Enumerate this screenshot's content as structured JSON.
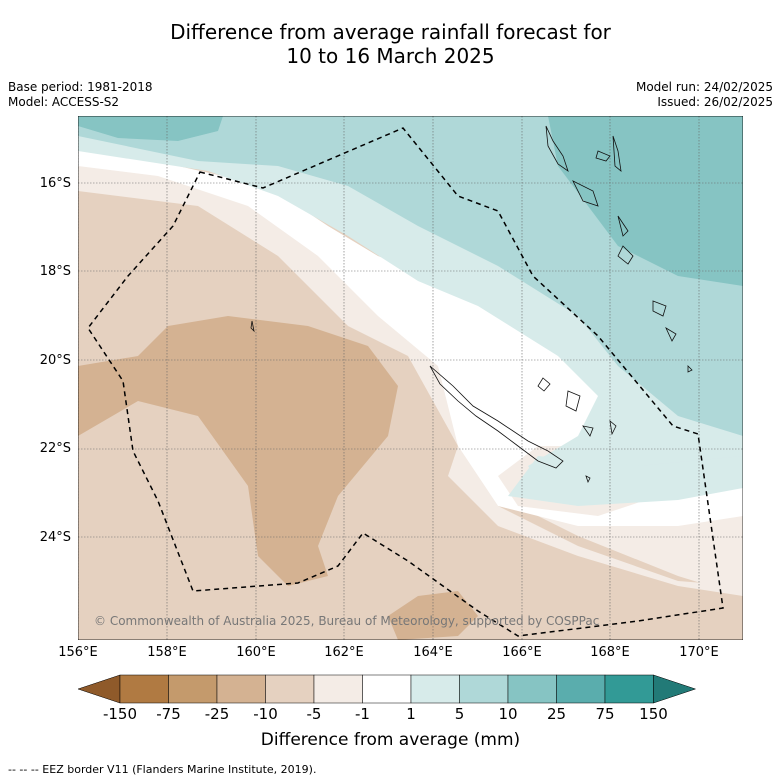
{
  "title_line1": "Difference from average rainfall forecast for",
  "title_line2": "10 to 16 March 2025",
  "base_period": "Base period: 1981-2018",
  "model": "Model: ACCESS-S2",
  "model_run": "Model run: 24/02/2025",
  "issued": "Issued: 26/02/2025",
  "copyright": "© Commonwealth of Australia 2025, Bureau of Meteorology, supported by COSPPac",
  "lat_labels": [
    "16°S",
    "18°S",
    "20°S",
    "22°S",
    "24°S"
  ],
  "lon_labels": [
    "156°E",
    "158°E",
    "160°E",
    "162°E",
    "164°E",
    "166°E",
    "168°E",
    "170°E"
  ],
  "colorbar": {
    "ticks": [
      "-150",
      "-75",
      "-25",
      "-10",
      "-5",
      "-1",
      "1",
      "5",
      "10",
      "25",
      "75",
      "150"
    ],
    "colors": [
      "#8f5a2a",
      "#b07a42",
      "#c49a6c",
      "#d4b292",
      "#e5d1c0",
      "#f4ece6",
      "#ffffff",
      "#d7ebea",
      "#afd8d8",
      "#86c4c3",
      "#5aadad",
      "#329a96",
      "#227a77"
    ],
    "title": "Difference from average (mm)"
  },
  "footer": "--  --  -- EEZ border V11 (Flanders Marine Institute, 2019)."
}
